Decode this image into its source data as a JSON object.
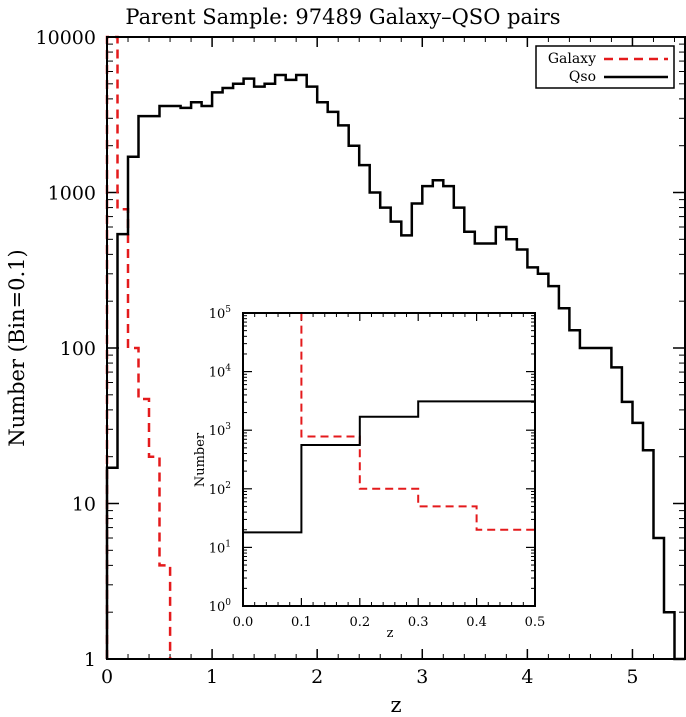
{
  "chart_data": [
    {
      "type": "line",
      "title": "Parent Sample: 97489 Galaxy–QSO pairs",
      "xlabel": "z",
      "ylabel": "Number (Bin=0.1)",
      "xlim": [
        0,
        5.5
      ],
      "ylim": [
        1,
        10000
      ],
      "yscale": "log",
      "xticks": [
        "0",
        "1",
        "2",
        "3",
        "4",
        "5"
      ],
      "yticks": [
        "1",
        "10",
        "100",
        "1000",
        "10000"
      ],
      "legend_position": "top-right",
      "grid": false,
      "series": [
        {
          "name": "Galaxy",
          "style": "step",
          "color": "#e41a1c",
          "dash": "dashed",
          "x": [
            0.0,
            0.1,
            0.2,
            0.3,
            0.4,
            0.5
          ],
          "values": [
            10000,
            780,
            100,
            47,
            20,
            4
          ]
        },
        {
          "name": "Qso",
          "style": "step",
          "color": "#000000",
          "dash": "solid",
          "x": [
            0.0,
            0.1,
            0.2,
            0.3,
            0.4,
            0.5,
            0.6,
            0.7,
            0.8,
            0.9,
            1.0,
            1.1,
            1.2,
            1.3,
            1.4,
            1.5,
            1.6,
            1.7,
            1.8,
            1.9,
            2.0,
            2.1,
            2.2,
            2.3,
            2.4,
            2.5,
            2.6,
            2.7,
            2.8,
            2.9,
            3.0,
            3.1,
            3.2,
            3.3,
            3.4,
            3.5,
            3.6,
            3.7,
            3.8,
            3.9,
            4.0,
            4.1,
            4.2,
            4.3,
            4.4,
            4.5,
            4.6,
            4.7,
            4.8,
            4.9,
            5.0,
            5.1,
            5.2,
            5.3,
            5.4
          ],
          "values": [
            17,
            540,
            1700,
            3100,
            3100,
            3600,
            3600,
            3500,
            3800,
            3600,
            4400,
            4700,
            5000,
            5400,
            4800,
            5000,
            5700,
            5300,
            5700,
            4800,
            3800,
            3300,
            2700,
            2000,
            1500,
            1000,
            800,
            650,
            530,
            850,
            1100,
            1200,
            1100,
            800,
            560,
            470,
            470,
            600,
            500,
            430,
            330,
            300,
            250,
            180,
            130,
            100,
            100,
            100,
            75,
            45,
            33,
            22,
            6,
            2,
            1
          ]
        }
      ]
    },
    {
      "type": "line",
      "title": "",
      "xlabel": "z",
      "ylabel": "Number",
      "xlim": [
        0,
        0.5
      ],
      "ylim": [
        1,
        100000
      ],
      "yscale": "log",
      "xticks": [
        "0.0",
        "0.1",
        "0.2",
        "0.3",
        "0.4",
        "0.5"
      ],
      "yticks": [
        {
          "base": "10",
          "exp": "0"
        },
        {
          "base": "10",
          "exp": "1"
        },
        {
          "base": "10",
          "exp": "2"
        },
        {
          "base": "10",
          "exp": "3"
        },
        {
          "base": "10",
          "exp": "4"
        },
        {
          "base": "10",
          "exp": "5"
        }
      ],
      "grid": false,
      "series": [
        {
          "name": "Galaxy",
          "style": "step",
          "color": "#e41a1c",
          "dash": "dashed",
          "x": [
            0.0,
            0.1,
            0.2,
            0.3,
            0.4
          ],
          "values": [
            100000,
            780,
            100,
            50,
            20
          ]
        },
        {
          "name": "Qso",
          "style": "step",
          "color": "#000000",
          "dash": "solid",
          "x": [
            0.0,
            0.1,
            0.2,
            0.3,
            0.4
          ],
          "values": [
            18,
            560,
            1700,
            3100,
            3100
          ]
        }
      ]
    }
  ]
}
